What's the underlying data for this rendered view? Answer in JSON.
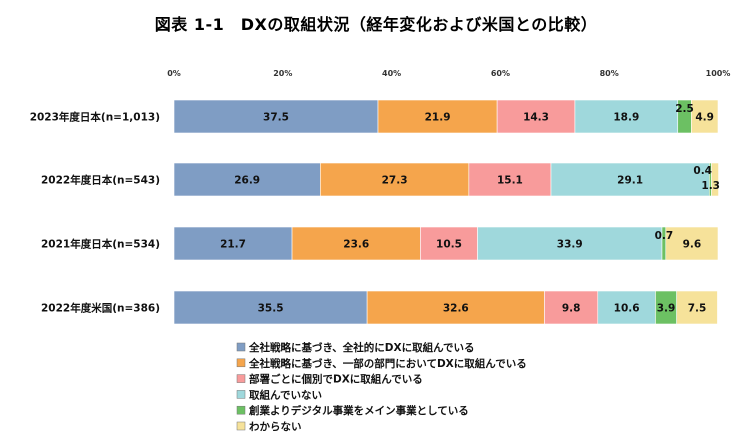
{
  "chart_data": {
    "type": "bar",
    "orientation": "horizontal",
    "stacked": true,
    "title": "図表 1-1　DXの取組状況（経年変化および米国との比較）",
    "xlim": [
      0,
      100
    ],
    "x_ticks": [
      "0%",
      "20%",
      "40%",
      "60%",
      "80%",
      "100%"
    ],
    "grid": false,
    "legend_position": "bottom",
    "categories": [
      "2023年度日本(n=1,013)",
      "2022年度日本(n=543)",
      "2021年度日本(n=534)",
      "2022年度米国(n=386)"
    ],
    "series": [
      {
        "name": "全社戦略に基づき、全社的にDXに取組んでいる",
        "color": "#7f9dc4",
        "values": [
          37.5,
          26.9,
          21.7,
          35.5
        ]
      },
      {
        "name": "全社戦略に基づき、一部の部門においてDXに取組んでいる",
        "color": "#f5a54c",
        "values": [
          21.9,
          27.3,
          23.6,
          32.6
        ]
      },
      {
        "name": "部署ごとに個別でDXに取組んでいる",
        "color": "#f89b9b",
        "values": [
          14.3,
          15.1,
          10.5,
          9.8
        ]
      },
      {
        "name": "取組んでいない",
        "color": "#9fd8dc",
        "values": [
          18.9,
          29.1,
          33.9,
          10.6
        ]
      },
      {
        "name": "創業よりデジタル事業をメイン事業としている",
        "color": "#6cc063",
        "values": [
          2.5,
          0.4,
          0.7,
          3.9
        ]
      },
      {
        "name": "わからない",
        "color": "#f6e29a",
        "values": [
          4.9,
          1.3,
          9.6,
          7.5
        ]
      }
    ]
  }
}
